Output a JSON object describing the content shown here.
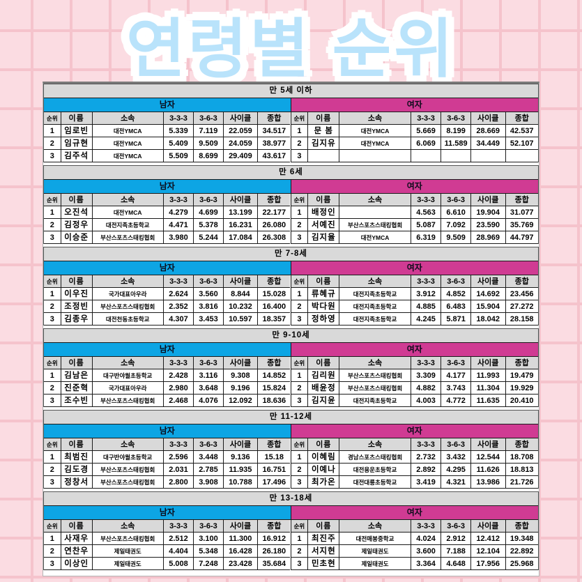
{
  "title": "연령별 순위",
  "columns": [
    "순위",
    "이름",
    "소속",
    "3-3-3",
    "3-6-3",
    "사이클",
    "종합"
  ],
  "genders": {
    "male": "남자",
    "female": "여자"
  },
  "colors": {
    "male_header": "#0da5e4",
    "female_header": "#d03b93",
    "section_header_bg": "#d9d9d9",
    "page_background": "#fbdce2",
    "title_fill": "#b9e3fb",
    "title_outline": "#5e2ba2"
  },
  "sections": [
    {
      "age_group": "만 5세 이하",
      "male": [
        {
          "rank": "1",
          "name": "임로빈",
          "team": "대전YMCA",
          "t333": "5.339",
          "t363": "7.119",
          "cycle": "22.059",
          "total": "34.517"
        },
        {
          "rank": "2",
          "name": "임규현",
          "team": "대전YMCA",
          "t333": "5.409",
          "t363": "9.509",
          "cycle": "24.059",
          "total": "38.977"
        },
        {
          "rank": "3",
          "name": "김주석",
          "team": "대전YMCA",
          "t333": "5.509",
          "t363": "8.699",
          "cycle": "29.409",
          "total": "43.617"
        }
      ],
      "female": [
        {
          "rank": "1",
          "name": "문 봄",
          "team": "대전YMCA",
          "t333": "5.669",
          "t363": "8.199",
          "cycle": "28.669",
          "total": "42.537"
        },
        {
          "rank": "2",
          "name": "김지유",
          "team": "대전YMCA",
          "t333": "6.069",
          "t363": "11.589",
          "cycle": "34.449",
          "total": "52.107"
        },
        {
          "rank": "3",
          "name": "",
          "team": "",
          "t333": "",
          "t363": "",
          "cycle": "",
          "total": ""
        }
      ]
    },
    {
      "age_group": "만 6세",
      "male": [
        {
          "rank": "1",
          "name": "오진석",
          "team": "대전YMCA",
          "t333": "4.279",
          "t363": "4.699",
          "cycle": "13.199",
          "total": "22.177"
        },
        {
          "rank": "2",
          "name": "김정우",
          "team": "대전지족초등학교",
          "t333": "4.471",
          "t363": "5.378",
          "cycle": "16.231",
          "total": "26.080"
        },
        {
          "rank": "3",
          "name": "이승준",
          "team": "부산스포츠스태킹협회",
          "t333": "3.980",
          "t363": "5.244",
          "cycle": "17.084",
          "total": "26.308"
        }
      ],
      "female": [
        {
          "rank": "1",
          "name": "배정인",
          "team": "",
          "t333": "4.563",
          "t363": "6.610",
          "cycle": "19.904",
          "total": "31.077"
        },
        {
          "rank": "2",
          "name": "서예진",
          "team": "부산스포츠스태킹협회",
          "t333": "5.087",
          "t363": "7.092",
          "cycle": "23.590",
          "total": "35.769"
        },
        {
          "rank": "3",
          "name": "김지율",
          "team": "대전YMCA",
          "t333": "6.319",
          "t363": "9.509",
          "cycle": "28.969",
          "total": "44.797"
        }
      ]
    },
    {
      "age_group": "만 7-8세",
      "male": [
        {
          "rank": "1",
          "name": "이우진",
          "team": "국가대표아우라",
          "t333": "2.624",
          "t363": "3.560",
          "cycle": "8.844",
          "total": "15.028"
        },
        {
          "rank": "2",
          "name": "조정빈",
          "team": "부산스포츠스태킹협회",
          "t333": "2.352",
          "t363": "3.816",
          "cycle": "10.232",
          "total": "16.400"
        },
        {
          "rank": "3",
          "name": "김종우",
          "team": "대전천동초등학교",
          "t333": "4.307",
          "t363": "3.453",
          "cycle": "10.597",
          "total": "18.357"
        }
      ],
      "female": [
        {
          "rank": "1",
          "name": "류혜규",
          "team": "대전지족초등학교",
          "t333": "3.912",
          "t363": "4.852",
          "cycle": "14.692",
          "total": "23.456"
        },
        {
          "rank": "2",
          "name": "박다원",
          "team": "대전지족초등학교",
          "t333": "4.885",
          "t363": "6.483",
          "cycle": "15.904",
          "total": "27.272"
        },
        {
          "rank": "3",
          "name": "정하영",
          "team": "대전지족초등학교",
          "t333": "4.245",
          "t363": "5.871",
          "cycle": "18.042",
          "total": "28.158"
        }
      ]
    },
    {
      "age_group": "만 9-10세",
      "male": [
        {
          "rank": "1",
          "name": "김남은",
          "team": "대구반야월초등학교",
          "t333": "2.428",
          "t363": "3.116",
          "cycle": "9.308",
          "total": "14.852"
        },
        {
          "rank": "2",
          "name": "진준혁",
          "team": "국가대표아우라",
          "t333": "2.980",
          "t363": "3.648",
          "cycle": "9.196",
          "total": "15.824"
        },
        {
          "rank": "3",
          "name": "조수빈",
          "team": "부산스포츠스태킹협회",
          "t333": "2.468",
          "t363": "4.076",
          "cycle": "12.092",
          "total": "18.636"
        }
      ],
      "female": [
        {
          "rank": "1",
          "name": "김리원",
          "team": "부산스포츠스태킹협회",
          "t333": "3.309",
          "t363": "4.177",
          "cycle": "11.993",
          "total": "19.479"
        },
        {
          "rank": "2",
          "name": "배윤정",
          "team": "부산스포츠스태킹협회",
          "t333": "4.882",
          "t363": "3.743",
          "cycle": "11.304",
          "total": "19.929"
        },
        {
          "rank": "3",
          "name": "김지윤",
          "team": "대전지족초등학교",
          "t333": "4.003",
          "t363": "4.772",
          "cycle": "11.635",
          "total": "20.410"
        }
      ]
    },
    {
      "age_group": "만 11-12세",
      "male": [
        {
          "rank": "1",
          "name": "최범진",
          "team": "대구반야월초등학교",
          "t333": "2.596",
          "t363": "3.448",
          "cycle": "9.136",
          "total": "15.18"
        },
        {
          "rank": "2",
          "name": "김도경",
          "team": "부산스포츠스태킹협회",
          "t333": "2.031",
          "t363": "2.785",
          "cycle": "11.935",
          "total": "16.751"
        },
        {
          "rank": "3",
          "name": "정창서",
          "team": "부산스포츠스태킹협회",
          "t333": "2.800",
          "t363": "3.908",
          "cycle": "10.788",
          "total": "17.496"
        }
      ],
      "female": [
        {
          "rank": "1",
          "name": "이혜림",
          "team": "경남스포츠스태킹협회",
          "t333": "2.732",
          "t363": "3.432",
          "cycle": "12.544",
          "total": "18.708"
        },
        {
          "rank": "2",
          "name": "이예나",
          "team": "대전용운초등학교",
          "t333": "2.892",
          "t363": "4.295",
          "cycle": "11.626",
          "total": "18.813"
        },
        {
          "rank": "3",
          "name": "최가온",
          "team": "대전대룡초등학교",
          "t333": "3.419",
          "t363": "4.321",
          "cycle": "13.986",
          "total": "21.726"
        }
      ]
    },
    {
      "age_group": "만 13-18세",
      "male": [
        {
          "rank": "1",
          "name": "사재우",
          "team": "부산스포츠스태킹협회",
          "t333": "2.512",
          "t363": "3.100",
          "cycle": "11.300",
          "total": "16.912"
        },
        {
          "rank": "2",
          "name": "연찬우",
          "team": "제일태권도",
          "t333": "4.404",
          "t363": "5.348",
          "cycle": "16.428",
          "total": "26.180"
        },
        {
          "rank": "3",
          "name": "이상인",
          "team": "제일태권도",
          "t333": "5.008",
          "t363": "7.248",
          "cycle": "23.428",
          "total": "35.684"
        }
      ],
      "female": [
        {
          "rank": "1",
          "name": "최진주",
          "team": "대전매봉중학교",
          "t333": "4.024",
          "t363": "2.912",
          "cycle": "12.412",
          "total": "19.348"
        },
        {
          "rank": "2",
          "name": "서지현",
          "team": "제일태권도",
          "t333": "3.600",
          "t363": "7.188",
          "cycle": "12.104",
          "total": "22.892"
        },
        {
          "rank": "3",
          "name": "민초현",
          "team": "제일태권도",
          "t333": "3.364",
          "t363": "4.648",
          "cycle": "17.956",
          "total": "25.968"
        }
      ]
    }
  ]
}
